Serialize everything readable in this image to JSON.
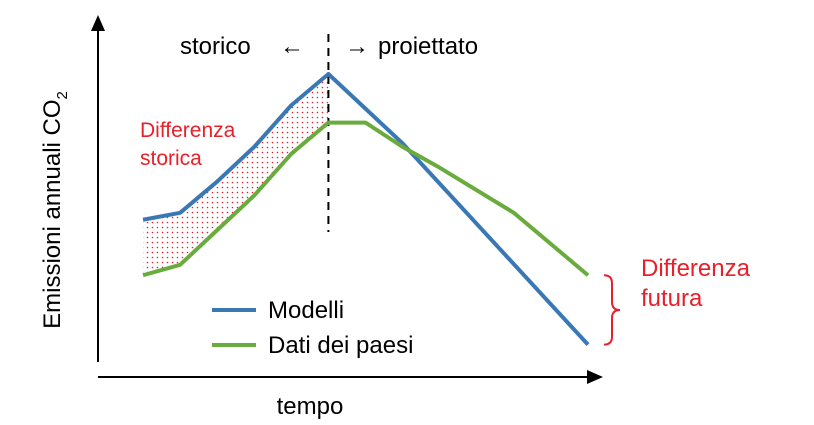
{
  "chart_data": {
    "type": "line",
    "title": "",
    "xlabel": "tempo",
    "ylabel": "Emissioni annuali CO",
    "ylabel_subscript": "2",
    "x": [
      0,
      1,
      2,
      3,
      4,
      5,
      6,
      7,
      8,
      9,
      10,
      11,
      12
    ],
    "series": [
      {
        "name": "Modelli",
        "color": "#3a78b5",
        "values": [
          4.1,
          4.3,
          5.2,
          6.2,
          7.4,
          8.3,
          null,
          6.3,
          null,
          null,
          null,
          null,
          0.5
        ]
      },
      {
        "name": "Dati dei paesi",
        "color": "#6aab3e",
        "values": [
          2.5,
          2.8,
          3.8,
          4.8,
          6.0,
          6.9,
          6.9,
          6.2,
          5.6,
          null,
          4.3,
          null,
          2.5
        ]
      }
    ],
    "ylim": [
      0,
      10
    ],
    "xlim": [
      0,
      12
    ],
    "divider_x": 5,
    "annotations": {
      "left_period": "storico",
      "right_period": "proiettato",
      "historic_gap": [
        "Differenza",
        "storica"
      ],
      "future_gap": [
        "Differenza",
        "futura"
      ]
    },
    "colors": {
      "annotation": "#e8202a",
      "axis": "#000000"
    },
    "legend": "bottom-center",
    "grid": false
  }
}
